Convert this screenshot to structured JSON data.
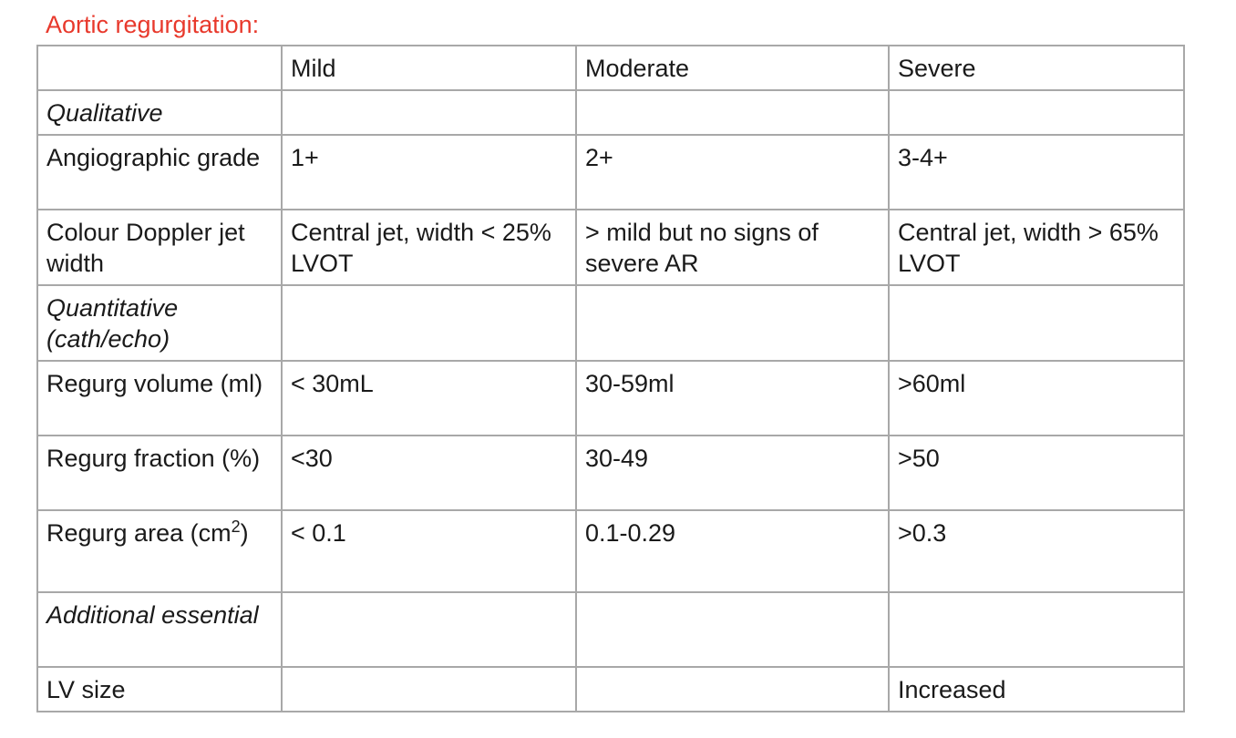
{
  "title": "Aortic regurgitation:",
  "table": {
    "headers": [
      "",
      "Mild",
      "Moderate",
      "Severe"
    ],
    "rows": [
      {
        "cells": [
          "Qualitative",
          "",
          "",
          ""
        ],
        "section": true
      },
      {
        "cells": [
          "Angiographic grade",
          "1+",
          "2+",
          "3-4+"
        ]
      },
      {
        "cells": [
          "Colour Doppler jet width",
          "Central jet, width < 25% LVOT",
          "> mild but no signs of severe AR",
          "Central jet, width > 65% LVOT"
        ]
      },
      {
        "cells": [
          "Quantitative (cath/echo)",
          "",
          "",
          ""
        ],
        "section": true
      },
      {
        "cells": [
          "Regurg volume (ml)",
          "< 30mL",
          "30-59ml",
          ">60ml"
        ]
      },
      {
        "cells": [
          "Regurg fraction (%)",
          "<30",
          "30-49",
          ">50"
        ]
      },
      {
        "cells": [
          "Regurg area (cm",
          "< 0.1",
          "0.1-0.29",
          ">0.3"
        ],
        "label_sup": "2",
        "label_suffix": ")"
      },
      {
        "cells": [
          "Additional essential",
          "",
          "",
          ""
        ],
        "section": true
      },
      {
        "cells": [
          "LV size",
          "",
          "",
          "Increased"
        ]
      }
    ]
  }
}
